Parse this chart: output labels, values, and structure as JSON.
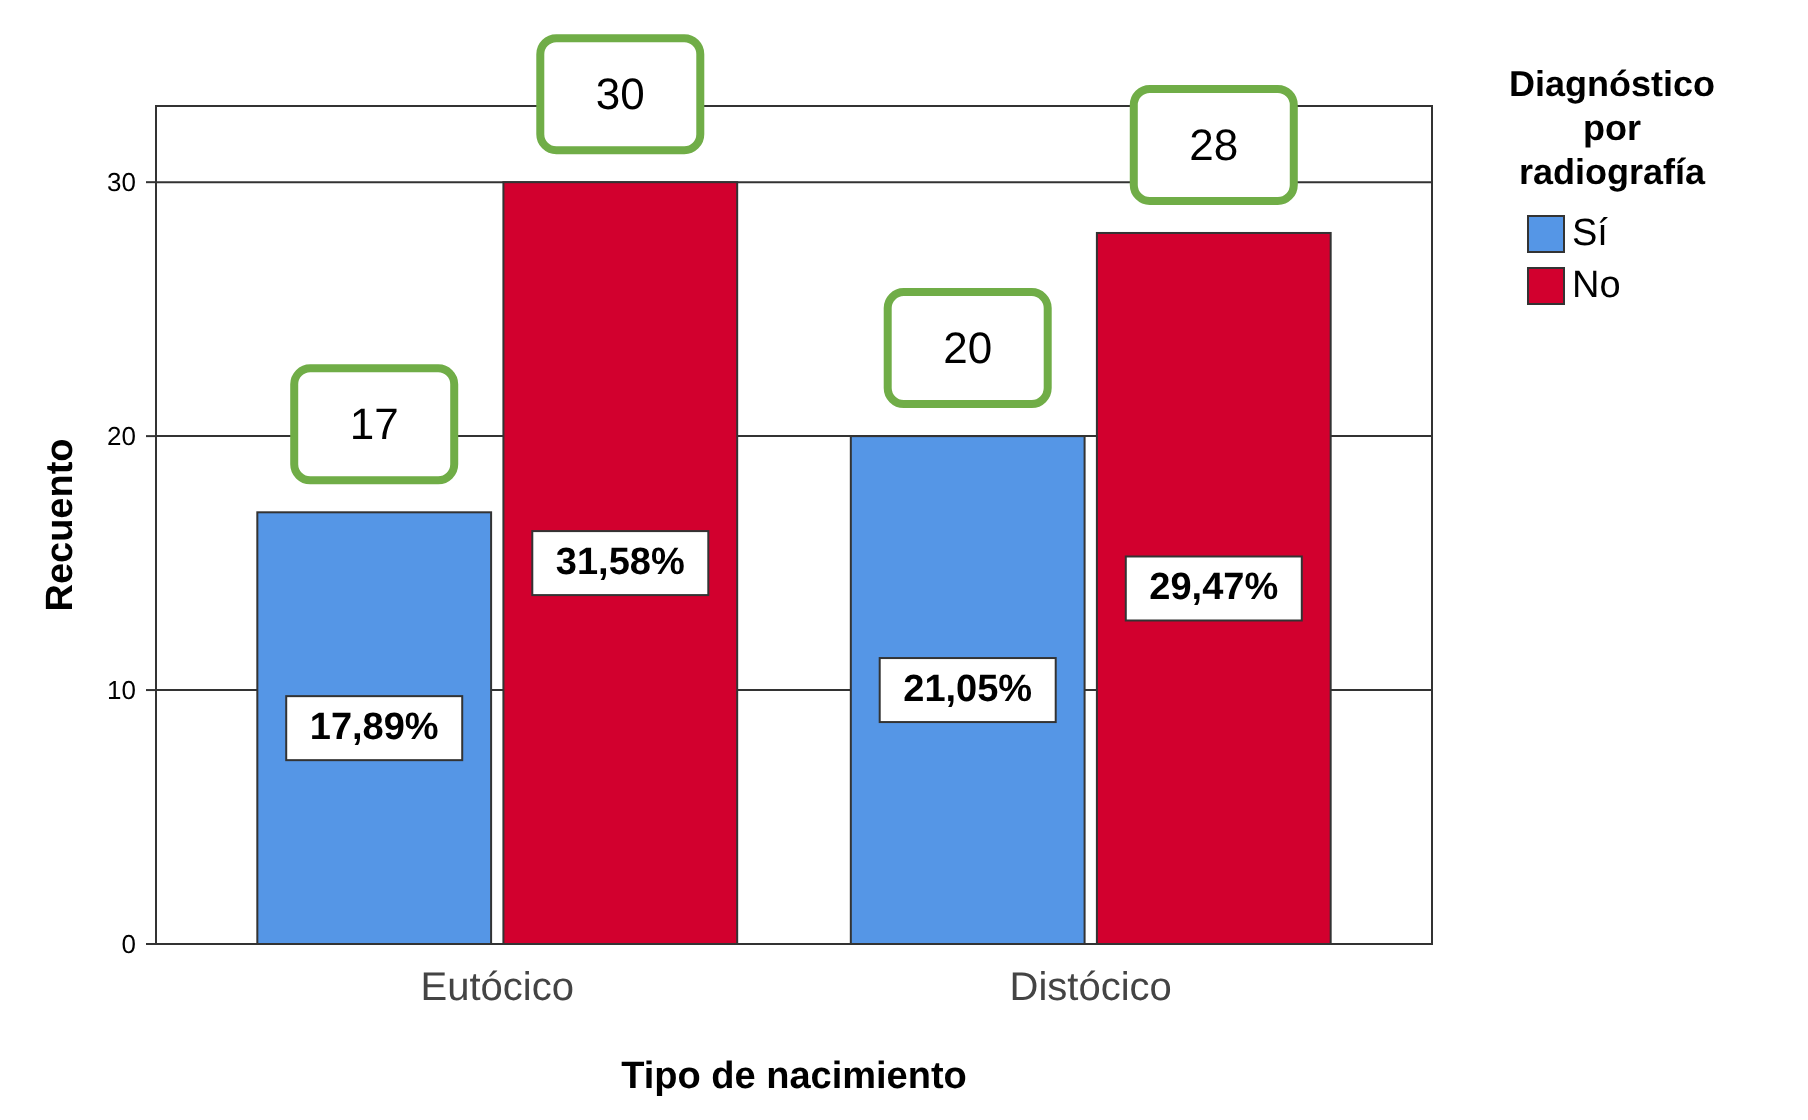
{
  "chart_data": {
    "type": "bar",
    "xlabel": "Tipo de nacimiento",
    "ylabel": "Recuento",
    "legend_title": "Diagnóstico por radiografía",
    "categories": [
      "Eutócico",
      "Distócico"
    ],
    "series": [
      {
        "name": "Sí",
        "color": "#5596e6",
        "values": [
          17,
          20
        ]
      },
      {
        "name": "No",
        "color": "#d2002e",
        "values": [
          30,
          28
        ]
      }
    ],
    "annotations": [
      "17,89%",
      "21,05%",
      "31,58%",
      "29,47%"
    ],
    "ylim": [
      0,
      33
    ],
    "yticks": [
      0,
      10,
      20,
      30
    ],
    "grid": "y",
    "legend": "top right",
    "data_labels": true
  }
}
